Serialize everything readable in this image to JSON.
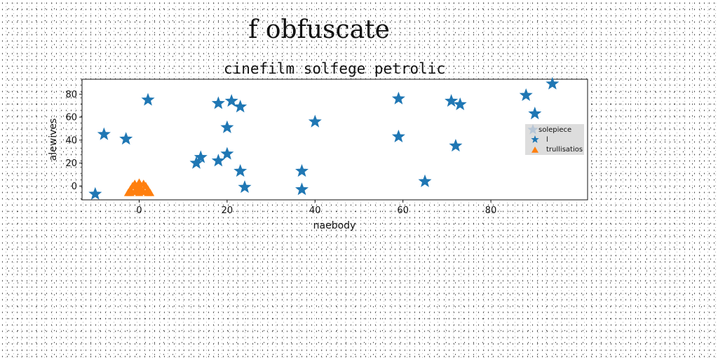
{
  "page": {
    "heading": "f obfuscate"
  },
  "chart_data": {
    "type": "scatter",
    "title": "cinefilm solfege petrolic",
    "xlabel": "naebody",
    "ylabel": "alewives",
    "xlim": [
      -13,
      102
    ],
    "ylim": [
      -12,
      93
    ],
    "xticks": [
      0,
      20,
      40,
      60,
      80
    ],
    "yticks": [
      0,
      20,
      40,
      60,
      80
    ],
    "grid": false,
    "legend": {
      "placement": "right",
      "title": "solepiece",
      "entries": [
        "l",
        "trullisatios"
      ]
    },
    "series": [
      {
        "name": "l",
        "marker": "star",
        "color": "#1f77b4",
        "points": [
          [
            -10,
            -7
          ],
          [
            -8,
            45
          ],
          [
            -3,
            41
          ],
          [
            2,
            75
          ],
          [
            13,
            20
          ],
          [
            14,
            25
          ],
          [
            18,
            72
          ],
          [
            18,
            22
          ],
          [
            20,
            28
          ],
          [
            20,
            51
          ],
          [
            21,
            74
          ],
          [
            23,
            69
          ],
          [
            23,
            13
          ],
          [
            24,
            -1
          ],
          [
            37,
            13
          ],
          [
            37,
            -3
          ],
          [
            40,
            56
          ],
          [
            59,
            76
          ],
          [
            59,
            43
          ],
          [
            65,
            4
          ],
          [
            71,
            74
          ],
          [
            72,
            35
          ],
          [
            73,
            71
          ],
          [
            88,
            79
          ],
          [
            90,
            63
          ],
          [
            94,
            89
          ]
        ]
      },
      {
        "name": "trullisatios",
        "marker": "triangle",
        "color": "#ff7f0e",
        "points": [
          [
            -2.5,
            -6
          ],
          [
            -2,
            -3
          ],
          [
            -1.5,
            0
          ],
          [
            -1,
            -5
          ],
          [
            -1,
            2
          ],
          [
            -0.5,
            -2
          ],
          [
            0,
            3
          ],
          [
            0,
            -6
          ],
          [
            0,
            0
          ],
          [
            0.5,
            -3
          ],
          [
            1,
            2
          ],
          [
            1,
            -5
          ],
          [
            1.5,
            0
          ],
          [
            2,
            -3
          ],
          [
            2.5,
            -6
          ],
          [
            -2,
            -6
          ],
          [
            2,
            -6
          ],
          [
            0,
            -4
          ]
        ]
      }
    ]
  }
}
